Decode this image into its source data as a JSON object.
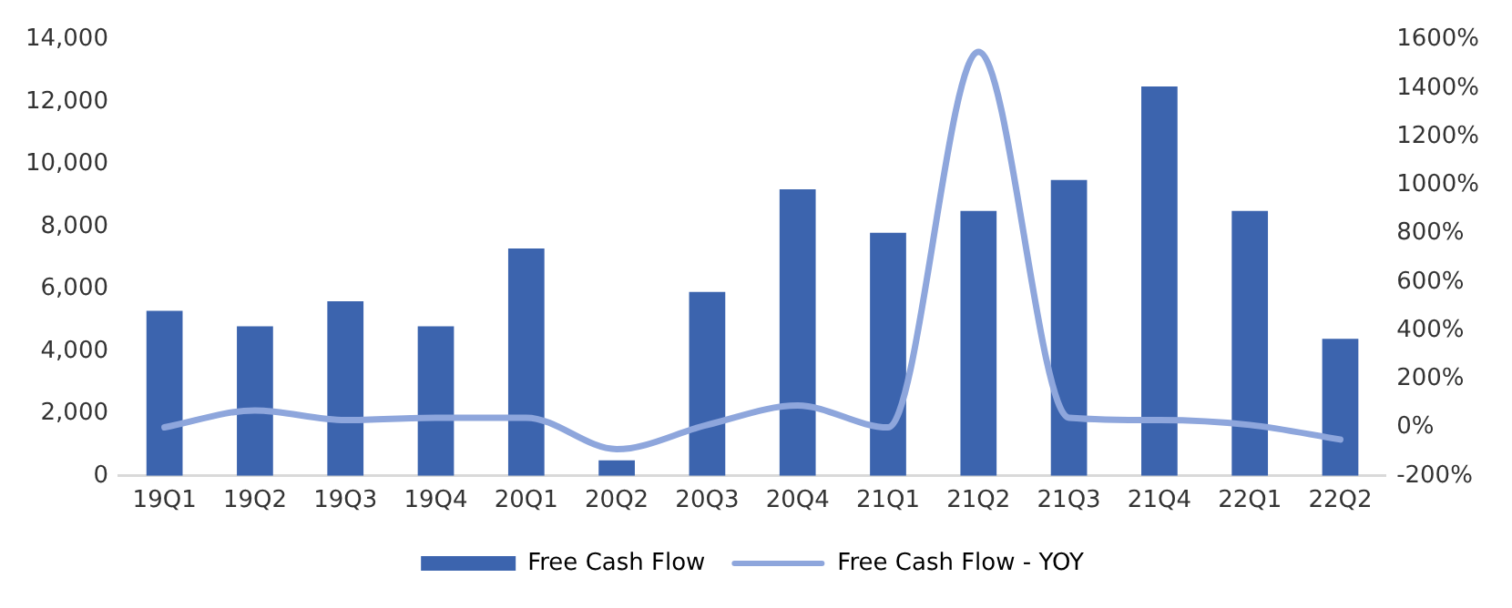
{
  "chart_data": {
    "type": "bar",
    "categories": [
      "19Q1",
      "19Q2",
      "19Q3",
      "19Q4",
      "20Q1",
      "20Q2",
      "20Q3",
      "20Q4",
      "21Q1",
      "21Q2",
      "21Q3",
      "21Q4",
      "22Q1",
      "22Q2"
    ],
    "series": [
      {
        "name": "Free Cash Flow",
        "color": "#3c64ae",
        "values": [
          5300,
          4800,
          5600,
          4800,
          7300,
          500,
          5900,
          9200,
          7800,
          8500,
          9500,
          12500,
          8500,
          4400
        ]
      },
      {
        "name": "Free Cash Flow - YOY",
        "type": "line",
        "axis": "y2",
        "color": "#8ea6dc",
        "values": [
          0,
          70,
          30,
          40,
          40,
          -90,
          10,
          90,
          0,
          1550,
          40,
          30,
          10,
          -50
        ]
      }
    ],
    "ylim": [
      0,
      14000
    ],
    "yticks": [
      {
        "value": 0,
        "label": "0"
      },
      {
        "value": 2000,
        "label": "2,000"
      },
      {
        "value": 4000,
        "label": "4,000"
      },
      {
        "value": 6000,
        "label": "6,000"
      },
      {
        "value": 8000,
        "label": "8,000"
      },
      {
        "value": 10000,
        "label": "10,000"
      },
      {
        "value": 12000,
        "label": "12,000"
      },
      {
        "value": 14000,
        "label": "14,000"
      }
    ],
    "y2lim": [
      -200,
      1600
    ],
    "y2ticks": [
      {
        "value": -200,
        "label": "-200%"
      },
      {
        "value": 0,
        "label": "0%"
      },
      {
        "value": 200,
        "label": "200%"
      },
      {
        "value": 400,
        "label": "400%"
      },
      {
        "value": 600,
        "label": "600%"
      },
      {
        "value": 800,
        "label": "800%"
      },
      {
        "value": 1000,
        "label": "1000%"
      },
      {
        "value": 1200,
        "label": "1200%"
      },
      {
        "value": 1400,
        "label": "1400%"
      },
      {
        "value": 1600,
        "label": "1600%"
      }
    ],
    "grid": false,
    "legend": "bottom",
    "marker": "none",
    "line_style": "solid"
  }
}
